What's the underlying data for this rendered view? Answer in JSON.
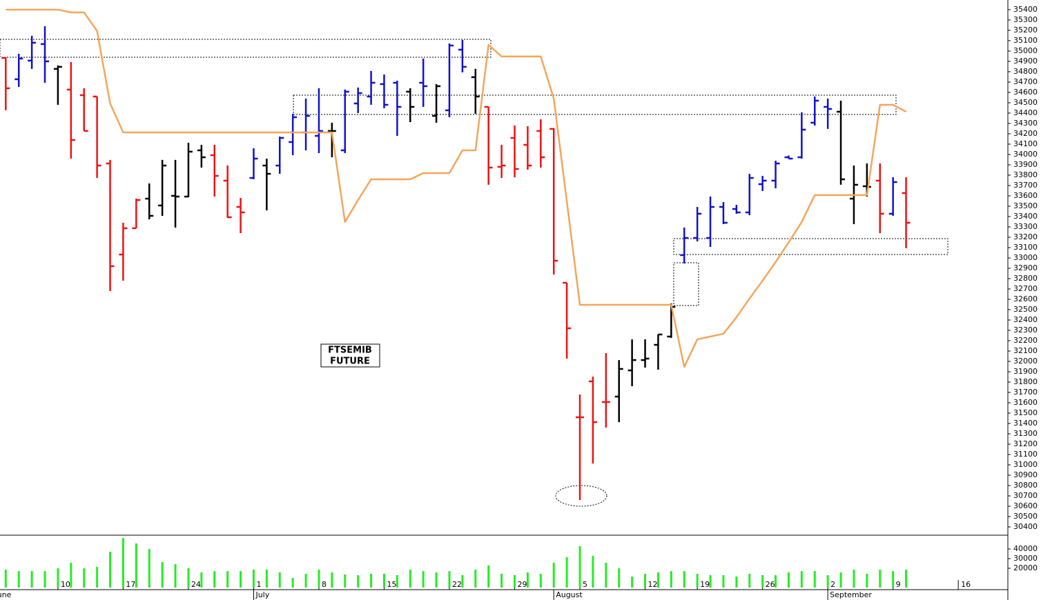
{
  "chart_data": [
    {
      "type": "ohlc",
      "title_lines": [
        "FTSEMIB",
        "FUTURE"
      ],
      "x": [
        -4,
        -3,
        -2,
        -1,
        0,
        1,
        2,
        3,
        4,
        5,
        6,
        7,
        8,
        9,
        10,
        11,
        12,
        13,
        14,
        15,
        16,
        17,
        18,
        19,
        20,
        21,
        22,
        23,
        24,
        25,
        26,
        27,
        28,
        29,
        30,
        31,
        32,
        33,
        34,
        35,
        36,
        37,
        38,
        39,
        40,
        41,
        42,
        43,
        44,
        45,
        46,
        47,
        48,
        49,
        50,
        51,
        52,
        53,
        54,
        55,
        56,
        57,
        58,
        59,
        60,
        61,
        62,
        63,
        64,
        65
      ],
      "open": [
        34933,
        34727,
        34907,
        35067,
        34827,
        34627,
        34573,
        34560,
        33913,
        33033,
        33287,
        33573,
        33507,
        33600,
        33593,
        34040,
        33993,
        33747,
        33493,
        33773,
        33893,
        33893,
        34120,
        34213,
        34180,
        34227,
        34040,
        34493,
        34560,
        34680,
        34693,
        34607,
        34693,
        34373,
        34427,
        35013,
        34747,
        34460,
        33880,
        34160,
        34093,
        34227,
        34247,
        32760,
        31460,
        31807,
        31607,
        31660,
        31913,
        32013,
        32160,
        32240,
        33027,
        33193,
        33193,
        33493,
        33473,
        33440,
        33713,
        33747,
        33973,
        33973,
        34307,
        34460,
        34413,
        33573,
        33693,
        33747,
        33427,
        33627
      ],
      "high": [
        34940,
        34973,
        35147,
        35240,
        34860,
        34893,
        34640,
        34560,
        33947,
        33340,
        33573,
        33720,
        33947,
        33947,
        34113,
        34093,
        34093,
        33893,
        33580,
        34060,
        33960,
        34173,
        34393,
        34540,
        34640,
        34307,
        34627,
        34647,
        34807,
        34773,
        34713,
        34640,
        34927,
        34680,
        35073,
        35107,
        34827,
        34460,
        34093,
        34280,
        34273,
        34340,
        34253,
        32760,
        31680,
        31853,
        32080,
        32013,
        32213,
        32213,
        32260,
        32560,
        33293,
        33493,
        33593,
        33540,
        33513,
        33813,
        33793,
        33940,
        33990,
        34407,
        34560,
        34540,
        34520,
        33893,
        33913,
        33913,
        33780,
        33780
      ],
      "low": [
        34427,
        34653,
        34827,
        34693,
        34480,
        33960,
        34227,
        33773,
        32680,
        32780,
        33287,
        33373,
        33407,
        33293,
        33587,
        33873,
        33593,
        33387,
        33240,
        33760,
        33460,
        33813,
        33993,
        34040,
        34013,
        33973,
        34013,
        34400,
        34480,
        34447,
        34180,
        34313,
        34460,
        34307,
        34360,
        34793,
        34393,
        33707,
        33773,
        33780,
        33853,
        33873,
        32840,
        32027,
        30660,
        31013,
        31360,
        31413,
        31760,
        31940,
        31920,
        32227,
        32947,
        33160,
        33107,
        33327,
        33427,
        33413,
        33647,
        33673,
        33960,
        33960,
        34280,
        34247,
        33707,
        33327,
        33593,
        33240,
        33407,
        33093
      ],
      "close": [
        34640,
        34927,
        35080,
        34900,
        34847,
        34140,
        34227,
        33893,
        32920,
        33287,
        33560,
        33407,
        33893,
        33593,
        34027,
        33973,
        33793,
        33393,
        33440,
        33960,
        33813,
        34160,
        34360,
        34373,
        34227,
        34227,
        34607,
        34593,
        34693,
        34480,
        34460,
        34460,
        34660,
        34660,
        35053,
        34847,
        34560,
        33873,
        33893,
        33860,
        33893,
        33973,
        32973,
        32320,
        31460,
        31413,
        31607,
        31927,
        32013,
        32027,
        32260,
        32527,
        33193,
        33427,
        33493,
        33340,
        33440,
        33773,
        33747,
        33913,
        33960,
        34240,
        34520,
        34440,
        33760,
        33707,
        33687,
        33427,
        33733,
        33340
      ],
      "colors": [
        "#ee1111",
        "#1111cc",
        "#1111cc",
        "#1111cc",
        "#000000",
        "#ee1111",
        "#ee1111",
        "#ee1111",
        "#ee1111",
        "#ee1111",
        "#ee1111",
        "#000000",
        "#000000",
        "#000000",
        "#000000",
        "#000000",
        "#ee1111",
        "#ee1111",
        "#ee1111",
        "#1111cc",
        "#000000",
        "#1111cc",
        "#1111cc",
        "#1111cc",
        "#1111cc",
        "#000000",
        "#1111cc",
        "#1111cc",
        "#1111cc",
        "#1111cc",
        "#1111cc",
        "#000000",
        "#1111cc",
        "#000000",
        "#1111cc",
        "#1111cc",
        "#000000",
        "#ee1111",
        "#ee1111",
        "#ee1111",
        "#ee1111",
        "#ee1111",
        "#ee1111",
        "#ee1111",
        "#ee1111",
        "#ee1111",
        "#ee1111",
        "#000000",
        "#000000",
        "#000000",
        "#000000",
        "#000000",
        "#1111cc",
        "#1111cc",
        "#1111cc",
        "#1111cc",
        "#1111cc",
        "#1111cc",
        "#1111cc",
        "#1111cc",
        "#1111cc",
        "#1111cc",
        "#1111cc",
        "#1111cc",
        "#000000",
        "#000000",
        "#000000",
        "#ee1111",
        "#1111cc",
        "#ee1111"
      ],
      "overlay": {
        "type": "line",
        "color": "#f5a55a",
        "values": [
          35400,
          35400,
          35400,
          35400,
          35400,
          35373,
          35373,
          35193,
          34493,
          34213,
          34213,
          34213,
          34213,
          34213,
          34213,
          34213,
          34213,
          34213,
          34213,
          34213,
          34213,
          34213,
          34213,
          34213,
          34213,
          34213,
          33347,
          33560,
          33760,
          33760,
          33760,
          33760,
          33820,
          33820,
          33820,
          34040,
          34040,
          35060,
          34947,
          34947,
          34947,
          34947,
          34540,
          33547,
          32547,
          32547,
          32547,
          32547,
          32547,
          32547,
          32547,
          32547,
          31947,
          32213,
          32240,
          32267,
          32427,
          32607,
          32780,
          32960,
          33150,
          33347,
          33607,
          33607,
          33607,
          33607,
          33607,
          34480,
          34480,
          34413
        ]
      },
      "xlim": [
        -4.44,
        72.8
      ],
      "ylim": [
        30327,
        35493
      ],
      "yticks": [
        30400,
        30500,
        30600,
        30700,
        30800,
        30900,
        31000,
        31100,
        31200,
        31300,
        31400,
        31500,
        31600,
        31700,
        31800,
        31900,
        32000,
        32100,
        32200,
        32300,
        32400,
        32500,
        32600,
        32700,
        32800,
        32900,
        33000,
        33100,
        33200,
        33300,
        33400,
        33500,
        33600,
        33700,
        33800,
        33900,
        34000,
        34100,
        34200,
        34300,
        34400,
        34500,
        34600,
        34700,
        34800,
        34900,
        35000,
        35100,
        35200,
        35300,
        35400
      ]
    },
    {
      "type": "bar",
      "x": [
        -4,
        -3,
        -2,
        -1,
        0,
        1,
        2,
        3,
        4,
        5,
        6,
        7,
        8,
        9,
        10,
        11,
        12,
        13,
        14,
        15,
        16,
        17,
        18,
        19,
        20,
        21,
        22,
        23,
        24,
        25,
        26,
        27,
        28,
        29,
        30,
        31,
        32,
        33,
        34,
        35,
        36,
        37,
        38,
        39,
        40,
        41,
        42,
        43,
        44,
        45,
        46,
        47,
        48,
        49,
        50,
        51,
        52,
        53,
        54,
        55,
        56,
        57,
        58,
        59,
        60,
        61,
        62,
        63,
        64,
        65
      ],
      "values": [
        18600,
        17100,
        17100,
        17100,
        20000,
        25700,
        20000,
        21400,
        37100,
        51400,
        45700,
        40000,
        26400,
        24300,
        20000,
        15700,
        17100,
        17100,
        17100,
        18600,
        18600,
        15700,
        10000,
        14300,
        18600,
        15700,
        13600,
        12900,
        14300,
        14300,
        12900,
        18600,
        17100,
        15700,
        17100,
        12900,
        18600,
        22900,
        14300,
        12900,
        15700,
        14300,
        25700,
        31400,
        42900,
        32900,
        25700,
        20000,
        11400,
        14300,
        15700,
        17100,
        17100,
        14300,
        12900,
        12900,
        11400,
        14300,
        12900,
        12900,
        15700,
        17100,
        17100,
        12900,
        15700,
        18600,
        14300,
        18600,
        17100,
        18600
      ],
      "color": "#22ee22",
      "xlim": [
        -4.44,
        72.8
      ],
      "ylim": [
        0,
        54300
      ],
      "yticks": [
        20000,
        30000,
        40000
      ],
      "xticks": [
        {
          "value": 0,
          "label": "10"
        },
        {
          "value": 5,
          "label": "17"
        },
        {
          "value": 10,
          "label": "24"
        },
        {
          "value": 15,
          "label": "1"
        },
        {
          "value": 20,
          "label": "8"
        },
        {
          "value": 25,
          "label": "15"
        },
        {
          "value": 30,
          "label": "22"
        },
        {
          "value": 35,
          "label": "29"
        },
        {
          "value": 40,
          "label": "5"
        },
        {
          "value": 45,
          "label": "12"
        },
        {
          "value": 49,
          "label": "19"
        },
        {
          "value": 54,
          "label": "26"
        },
        {
          "value": 59,
          "label": "2"
        },
        {
          "value": 64,
          "label": "9"
        },
        {
          "value": 69,
          "label": "16"
        }
      ],
      "month_ticks": [
        {
          "value": -5,
          "label": "June"
        },
        {
          "value": 15,
          "label": "July"
        },
        {
          "value": 38,
          "label": "August"
        },
        {
          "value": 59,
          "label": "September"
        }
      ]
    }
  ]
}
